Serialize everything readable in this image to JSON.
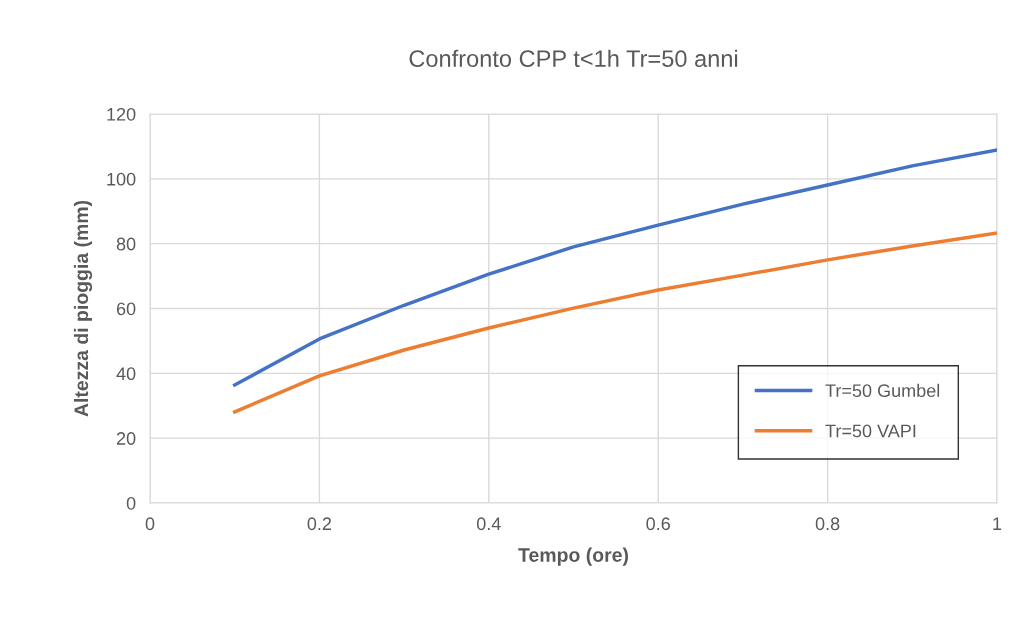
{
  "chart_data": {
    "type": "line",
    "title": "Confronto CPP t<1h Tr=50 anni",
    "xlabel": "Tempo (ore)",
    "ylabel": "Altezza di pioggia (mm)",
    "x": [
      0.1,
      0.2,
      0.3,
      0.4,
      0.5,
      0.6,
      0.7,
      0.8,
      0.9,
      1
    ],
    "series": [
      {
        "name": "Tr=50 Gumbel",
        "color": "#4472c4",
        "values": [
          36.4,
          50.6,
          61,
          70.6,
          79,
          85.7,
          92.2,
          98.1,
          104,
          108.9
        ]
      },
      {
        "name": "Tr=50 VAPI",
        "color": "#ed7d31",
        "values": [
          28.1,
          39.2,
          47.2,
          54,
          60.1,
          65.7,
          70.3,
          75,
          79.3,
          83.3
        ]
      }
    ],
    "xlim": [
      0,
      1
    ],
    "xticks": [
      0,
      0.2,
      0.4,
      0.6,
      0.8,
      1
    ],
    "ylim": [
      0,
      120
    ],
    "yticks": [
      0,
      20,
      40,
      60,
      80,
      100,
      120
    ],
    "grid": true,
    "legend": "lower right",
    "marker": "none",
    "line_style": "solid"
  }
}
